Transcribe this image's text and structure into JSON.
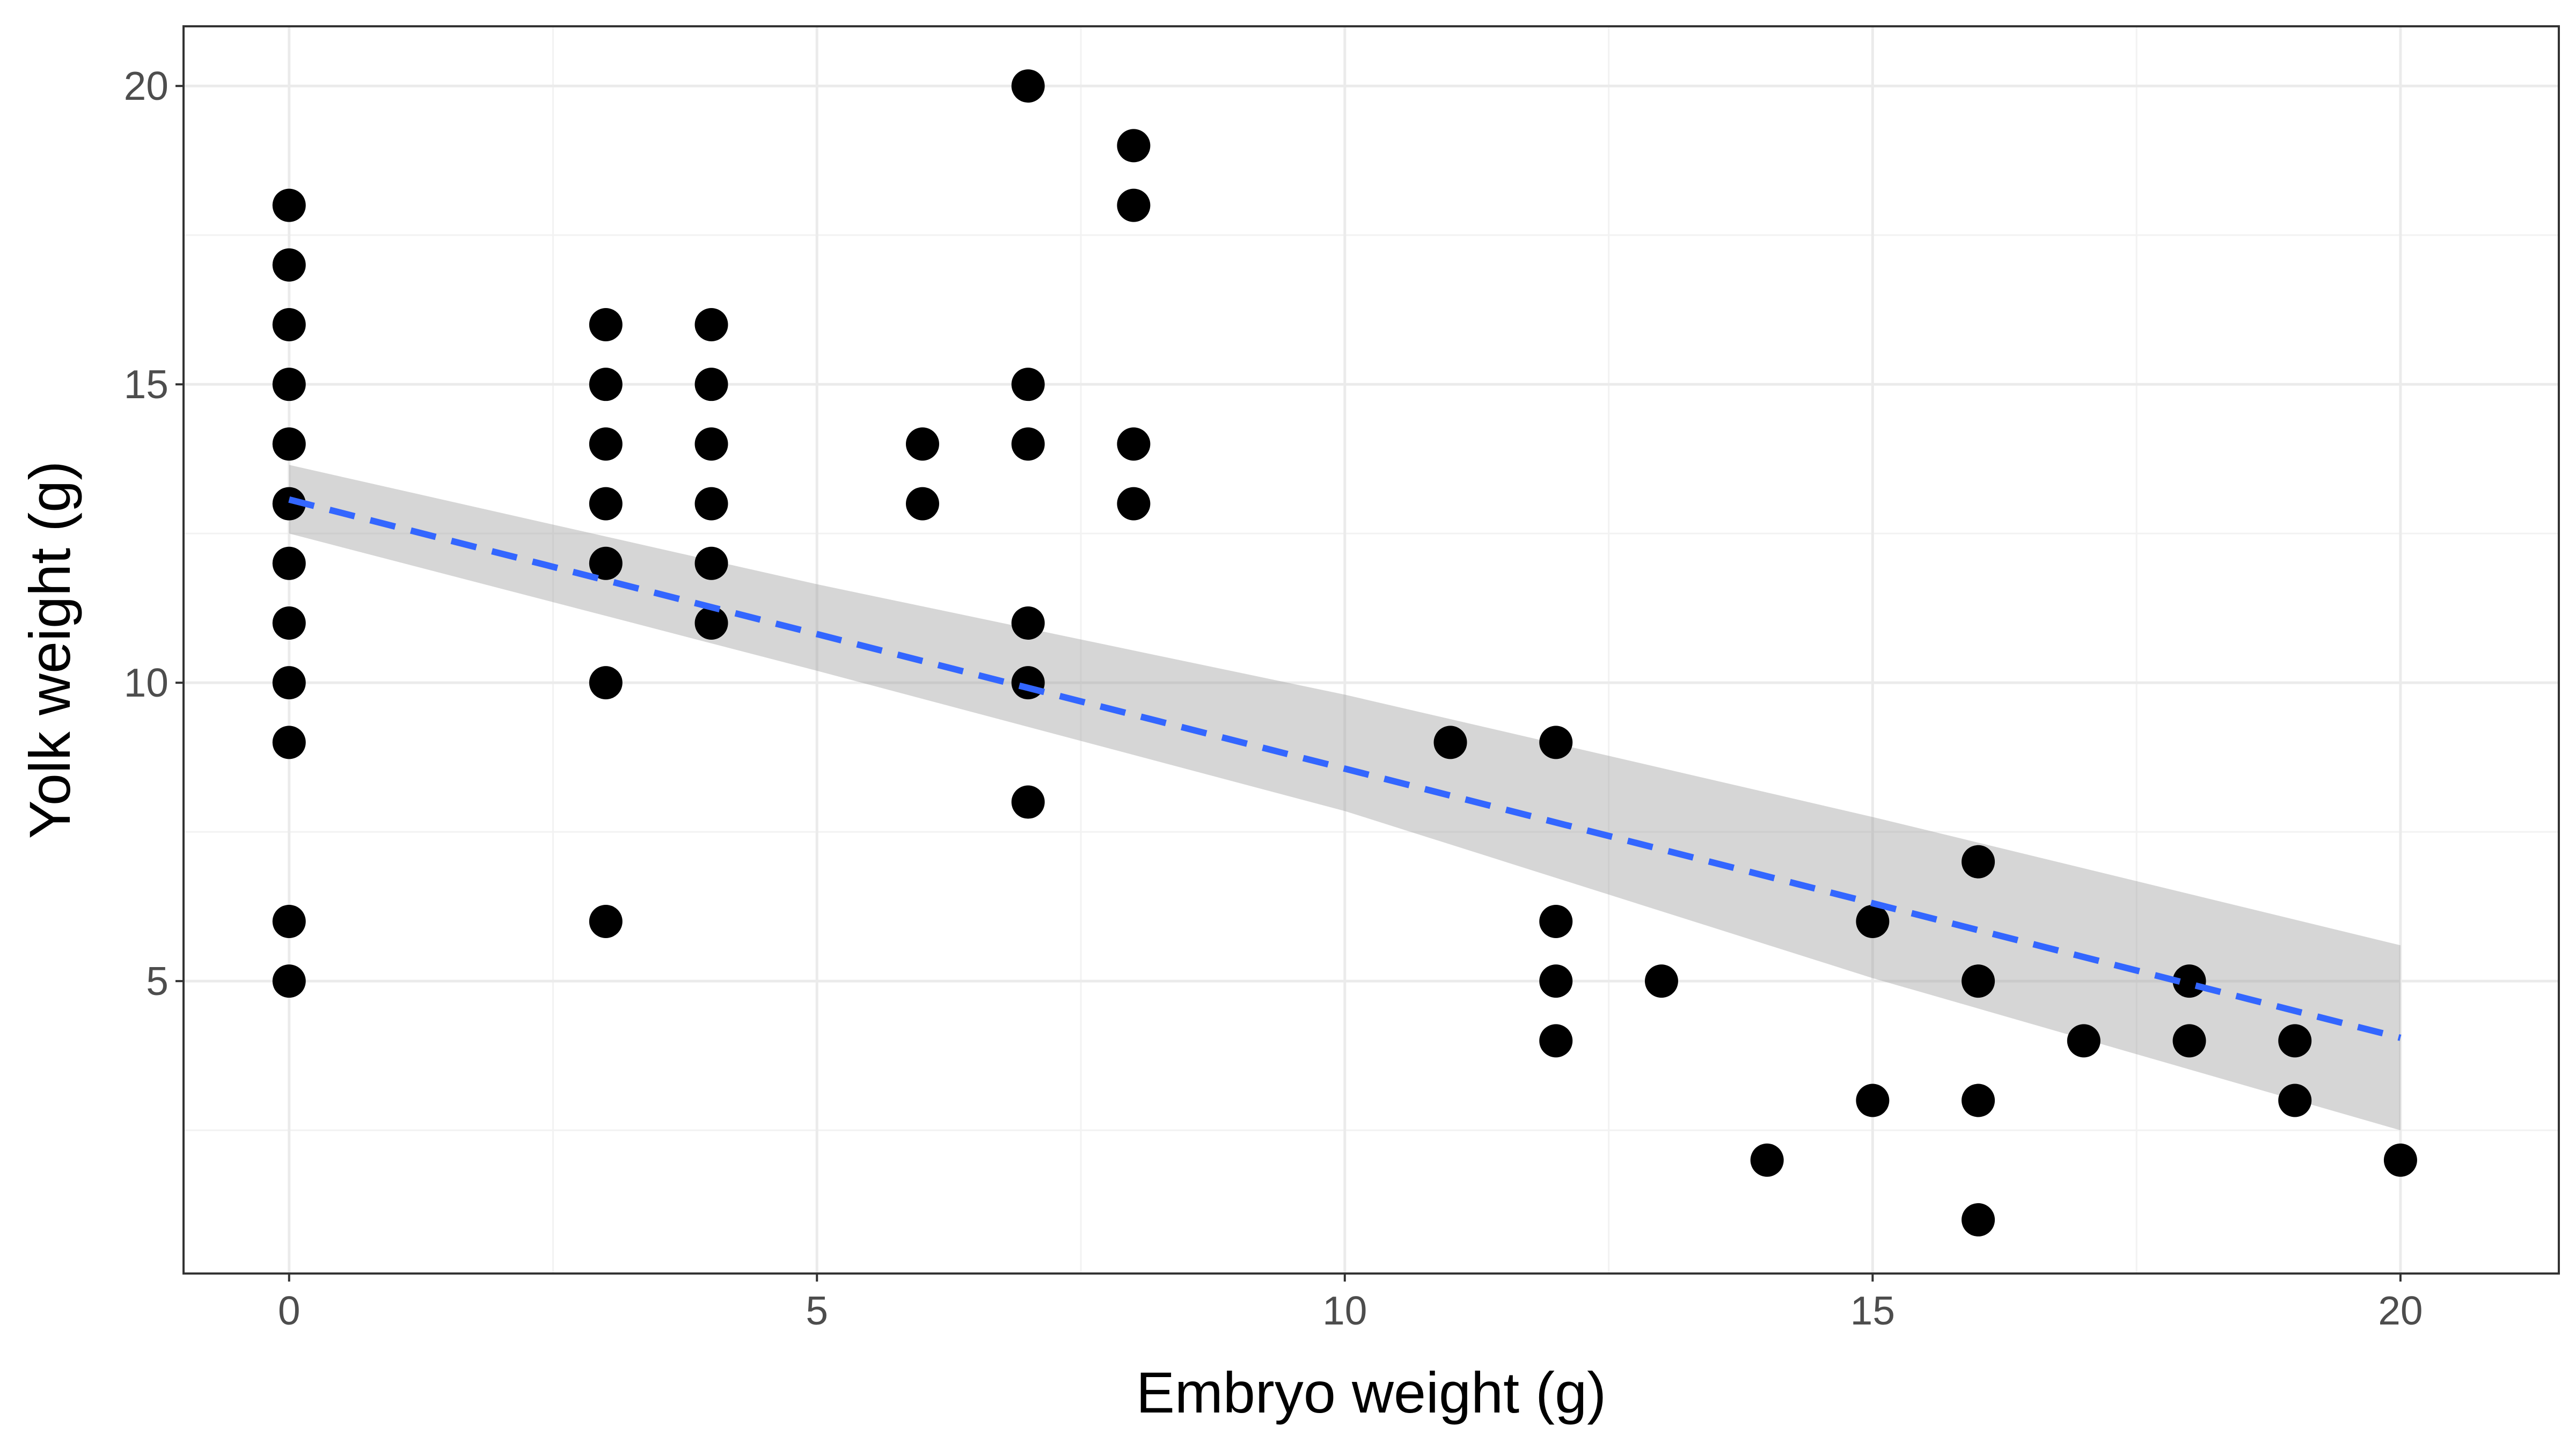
{
  "chart_data": {
    "type": "scatter",
    "xlabel": "Embryo weight (g)",
    "ylabel": "Yolk weight (g)",
    "xlim": [
      -1,
      21.5
    ],
    "ylim": [
      0.1,
      21
    ],
    "x_ticks": [
      0,
      5,
      10,
      15,
      20
    ],
    "y_ticks": [
      5,
      10,
      15,
      20
    ],
    "grid": true,
    "points": [
      [
        0,
        18
      ],
      [
        0,
        17
      ],
      [
        0,
        16
      ],
      [
        0,
        15
      ],
      [
        0,
        14
      ],
      [
        0,
        13
      ],
      [
        0,
        12
      ],
      [
        0,
        11
      ],
      [
        0,
        10
      ],
      [
        0,
        9
      ],
      [
        0,
        6
      ],
      [
        0,
        5
      ],
      [
        3,
        16
      ],
      [
        3,
        15
      ],
      [
        3,
        14
      ],
      [
        3,
        13
      ],
      [
        3,
        12
      ],
      [
        3,
        10
      ],
      [
        3,
        6
      ],
      [
        4,
        16
      ],
      [
        4,
        15
      ],
      [
        4,
        14
      ],
      [
        4,
        13
      ],
      [
        4,
        12
      ],
      [
        4,
        11
      ],
      [
        6,
        14
      ],
      [
        6,
        13
      ],
      [
        7,
        20
      ],
      [
        7,
        15
      ],
      [
        7,
        14
      ],
      [
        7,
        11
      ],
      [
        7,
        10
      ],
      [
        7,
        8
      ],
      [
        8,
        19
      ],
      [
        8,
        18
      ],
      [
        8,
        14
      ],
      [
        8,
        13
      ],
      [
        11,
        9
      ],
      [
        12,
        9
      ],
      [
        12,
        6
      ],
      [
        12,
        5
      ],
      [
        12,
        4
      ],
      [
        13,
        5
      ],
      [
        14,
        2
      ],
      [
        15,
        6
      ],
      [
        15,
        3
      ],
      [
        16,
        7
      ],
      [
        16,
        5
      ],
      [
        16,
        3
      ],
      [
        16,
        1
      ],
      [
        17,
        4
      ],
      [
        18,
        5
      ],
      [
        18,
        4
      ],
      [
        19,
        4
      ],
      [
        19,
        3
      ],
      [
        20,
        2
      ]
    ],
    "fit": {
      "method": "linear",
      "line": [
        [
          0,
          13.07
        ],
        [
          20,
          4.05
        ]
      ],
      "ci_band": [
        [
          0,
          12.5,
          13.65
        ],
        [
          5,
          10.2,
          11.65
        ],
        [
          10,
          7.85,
          9.8
        ],
        [
          15,
          5.05,
          7.75
        ],
        [
          20,
          2.5,
          5.6
        ]
      ],
      "line_color": "#3366FF",
      "band_color": "#999999"
    },
    "point_color": "#000000",
    "grid_major_color": "#EBEBEB",
    "grid_minor_color": "#F2F2F2"
  }
}
